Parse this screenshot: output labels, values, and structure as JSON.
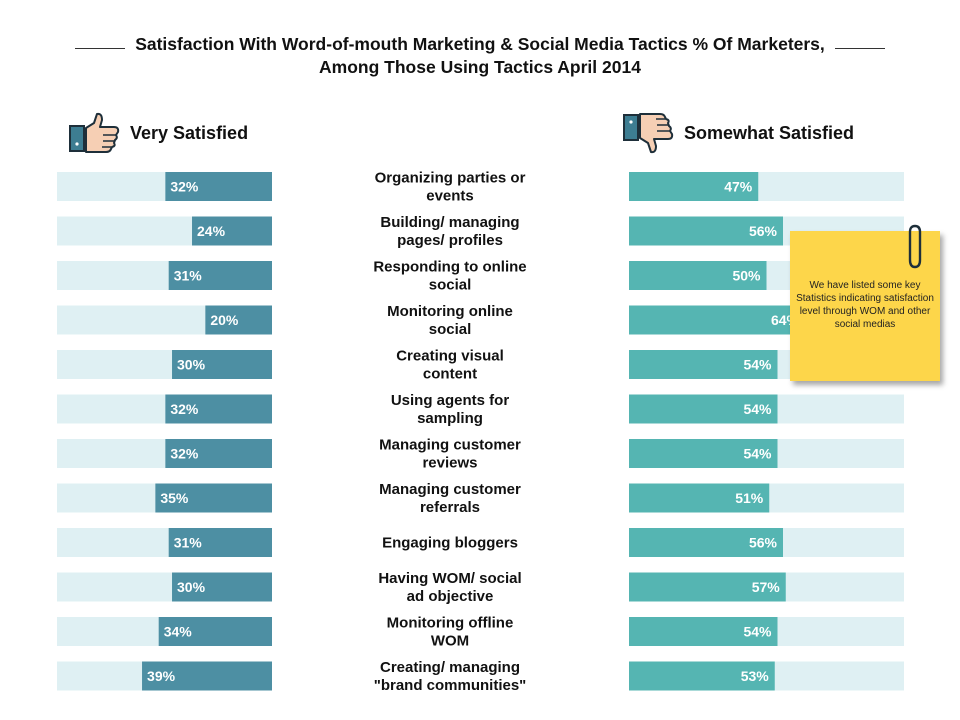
{
  "title_line1": "Satisfaction With Word-of-mouth Marketing & Social Media Tactics % Of Marketers,",
  "title_line2": "Among Those Using Tactics April 2014",
  "left_heading": "Very Satisfied",
  "right_heading": "Somewhat Satisfied",
  "note_text": "We have listed some key Statistics indicating satisfaction level through WOM and other social medias",
  "icons": {
    "left": "thumbs-up-icon",
    "right": "thumbs-down-icon",
    "note": "paperclip-icon"
  },
  "colors": {
    "left_bar": "#4d8fa3",
    "right_bar": "#55b5b2",
    "track": "#dff0f3",
    "note": "#fdd64a"
  },
  "chart_data": {
    "type": "bar",
    "title": "Satisfaction With Word-of-mouth Marketing & Social Media Tactics % Of Marketers, Among Those Using Tactics April 2014",
    "max": 100,
    "categories": [
      [
        "Organizing parties or",
        "events"
      ],
      [
        "Building/  managing",
        "pages/  profiles"
      ],
      [
        "Responding to online",
        "social"
      ],
      [
        "Monitoring online",
        "social"
      ],
      [
        "Creating visual",
        "content"
      ],
      [
        "Using agents for",
        "sampling"
      ],
      [
        "Managing customer",
        "reviews"
      ],
      [
        "Managing customer",
        "referrals"
      ],
      [
        "Engaging bloggers"
      ],
      [
        "Having WOM/ social",
        "ad objective"
      ],
      [
        "Monitoring offline",
        "WOM"
      ],
      [
        "Creating/ managing",
        "\"brand communities\""
      ]
    ],
    "series": [
      {
        "name": "Very Satisfied",
        "values": [
          32,
          24,
          31,
          20,
          30,
          32,
          32,
          35,
          31,
          30,
          34,
          39
        ],
        "labels": [
          "32%",
          "24%",
          "31%",
          "20%",
          "30%",
          "32%",
          "32%",
          "35%",
          "31%",
          "30%",
          "34%",
          "39%"
        ]
      },
      {
        "name": "Somewhat Satisfied",
        "values": [
          47,
          56,
          50,
          64,
          54,
          54,
          54,
          51,
          56,
          57,
          54,
          53
        ],
        "labels": [
          "47%",
          "56%",
          "50%",
          "64%",
          "54%",
          "54%",
          "54%",
          "51%",
          "56%",
          "57%",
          "54%",
          "53%"
        ]
      }
    ]
  }
}
